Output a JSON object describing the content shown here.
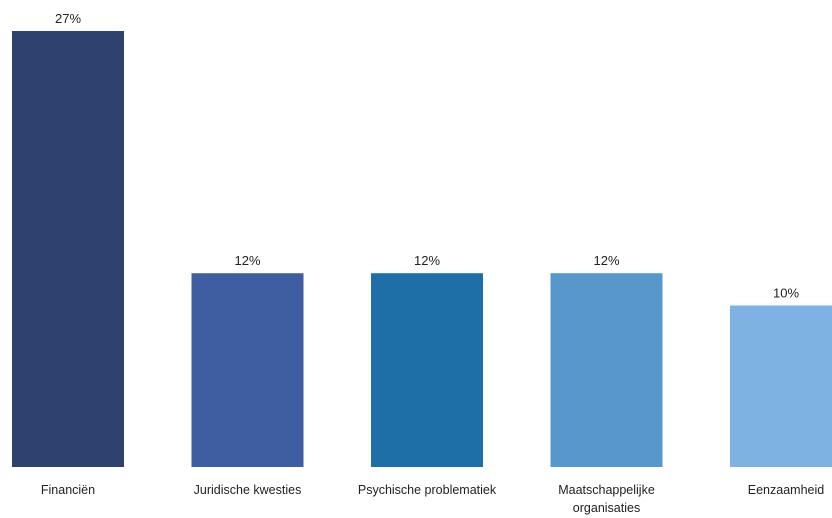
{
  "chart_data": {
    "type": "bar",
    "categories": [
      [
        "Financiën"
      ],
      [
        "Juridische kwesties"
      ],
      [
        "Psychische problematiek"
      ],
      [
        "Maatschappelijke",
        "organisaties"
      ],
      [
        "Eenzaamheid"
      ]
    ],
    "values": [
      27,
      12,
      12,
      12,
      10
    ],
    "value_labels": [
      "27%",
      "12%",
      "12%",
      "12%",
      "10%"
    ],
    "unit": "%",
    "ylim": [
      0,
      27
    ],
    "grid": false,
    "legend": "none",
    "colors": [
      "#2e4270",
      "#3e5ea1",
      "#1e6ea7",
      "#5797cc",
      "#7eb2e2"
    ]
  }
}
